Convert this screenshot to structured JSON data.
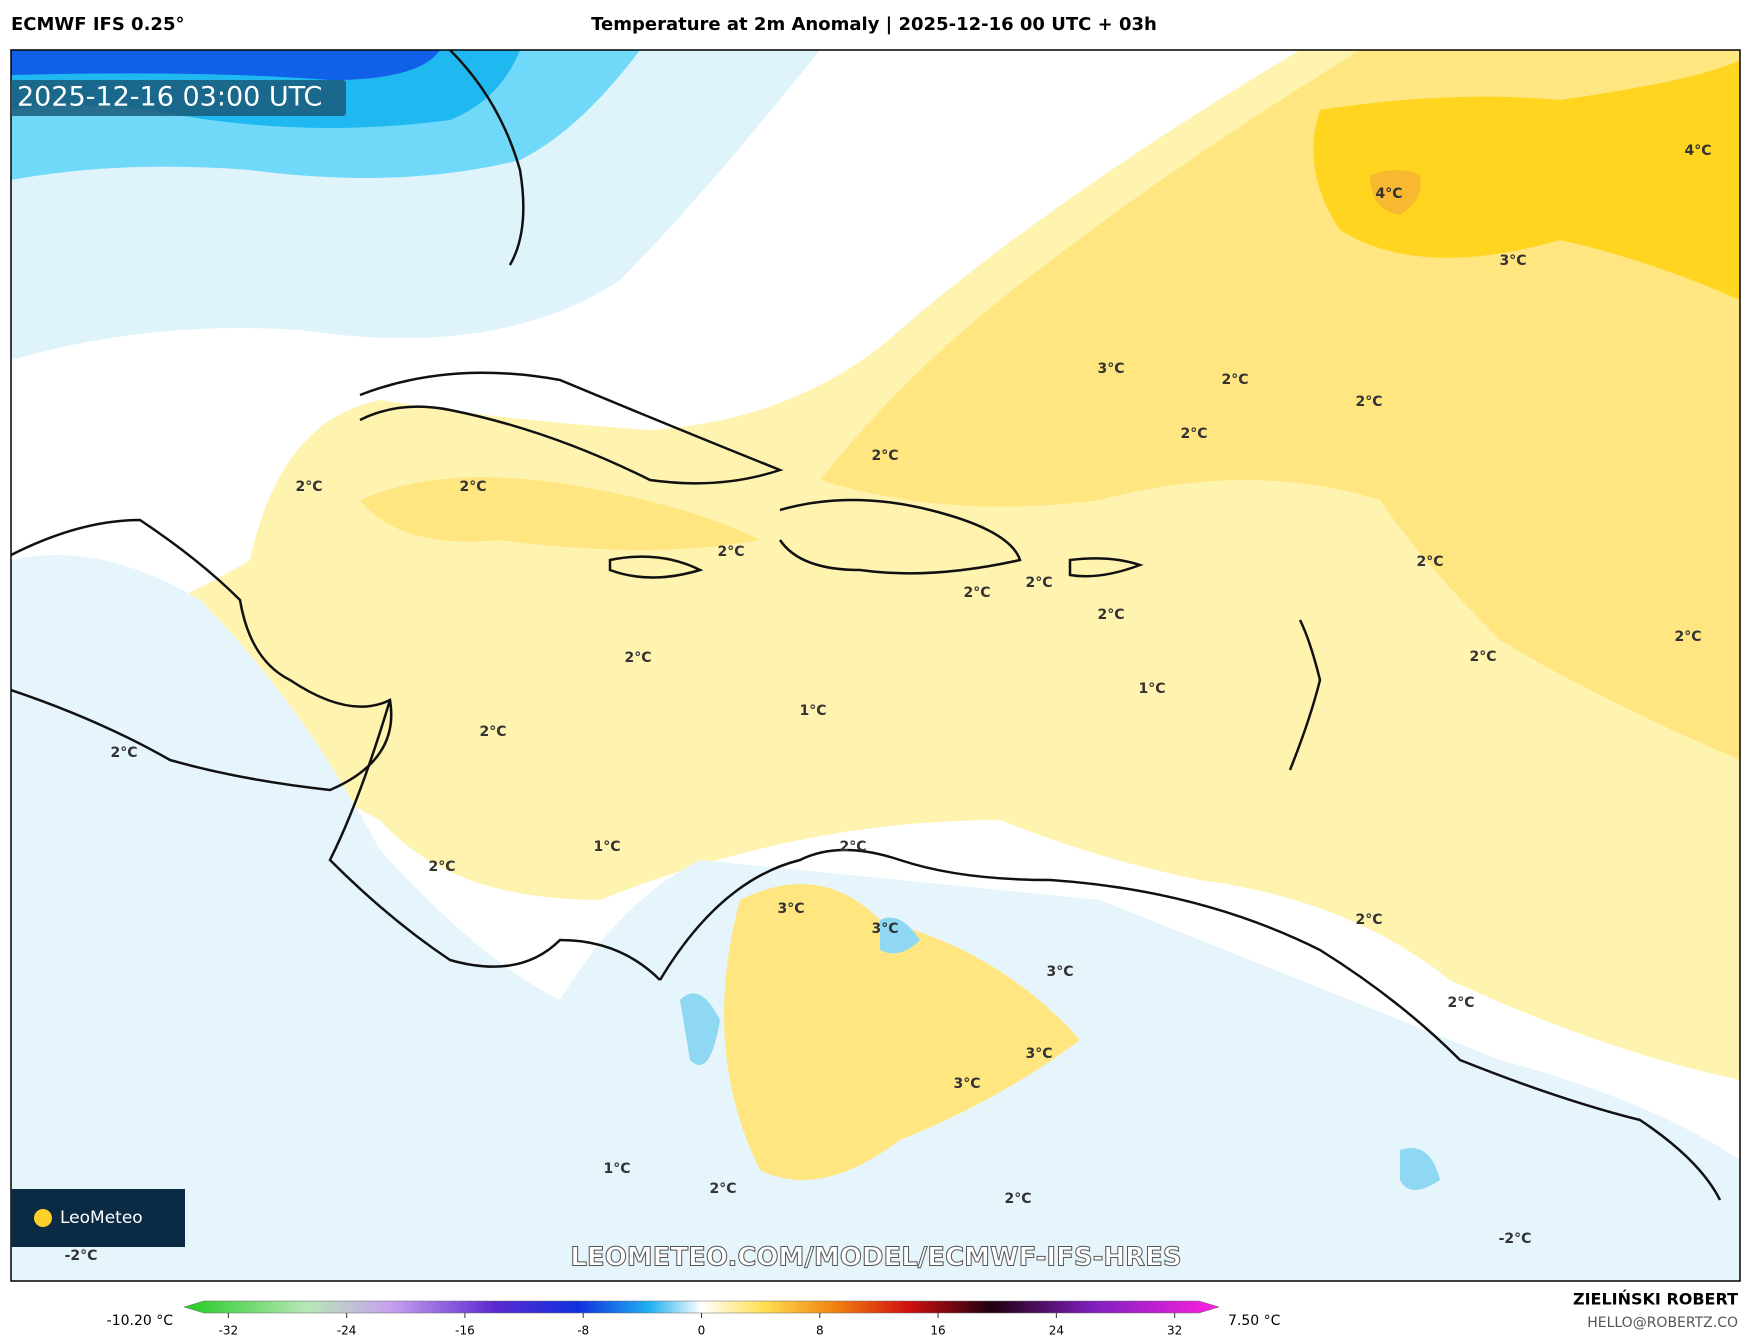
{
  "header": {
    "model": "ECMWF IFS 0.25°",
    "title": "Temperature at 2m Anomaly | 2025-12-16 00 UTC + 03h"
  },
  "map": {
    "valid_time": "2025-12-16 03:00 UTC",
    "watermark": "LEOMETEO.COM/MODEL/ECMWF-IFS-HRES",
    "logo": "LeoMeteo",
    "contour_labels": [
      "4°C",
      "4°C",
      "3°C",
      "3°C",
      "2°C",
      "2°C",
      "2°C",
      "2°C",
      "2°C",
      "2°C",
      "2°C",
      "2°C",
      "2°C",
      "2°C",
      "2°C",
      "2°C",
      "2°C",
      "2°C",
      "1°C",
      "1°C",
      "2°C",
      "2°C",
      "1°C",
      "2°C",
      "2°C",
      "3°C",
      "3°C",
      "3°C",
      "3°C",
      "3°C",
      "2°C",
      "2°C",
      "1°C",
      "2°C",
      "2°C",
      "-2°C",
      "-2°C"
    ]
  },
  "colorbar": {
    "min_label": "-10.20 °C",
    "max_label": "7.50 °C",
    "lim": [
      -35,
      35
    ],
    "ticks": [
      -32,
      -24,
      -16,
      -8,
      0,
      8,
      16,
      24,
      32
    ]
  },
  "footer": {
    "author": "ZIELIŃSKI ROBERT",
    "email": "HELLO@ROBERTZ.CO"
  }
}
